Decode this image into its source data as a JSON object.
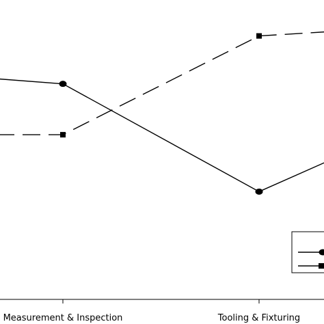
{
  "chart_data": {
    "type": "line",
    "title": "",
    "xlabel": "",
    "ylabel": "",
    "categories": [
      "",
      "Measurement & Inspection",
      "Tooling & Fixturing",
      ""
    ],
    "ylim": [
      0,
      100
    ],
    "grid": false,
    "legend": {
      "placement": "bottom-right",
      "entries": 2
    },
    "series": [
      {
        "values": [
          77,
          72,
          36,
          65
        ],
        "line_style": "solid",
        "marker": "circle",
        "color": "#000000"
      },
      {
        "values": [
          55,
          55,
          88,
          92
        ],
        "line_style": "dashed",
        "marker": "square",
        "color": "#000000"
      }
    ]
  }
}
